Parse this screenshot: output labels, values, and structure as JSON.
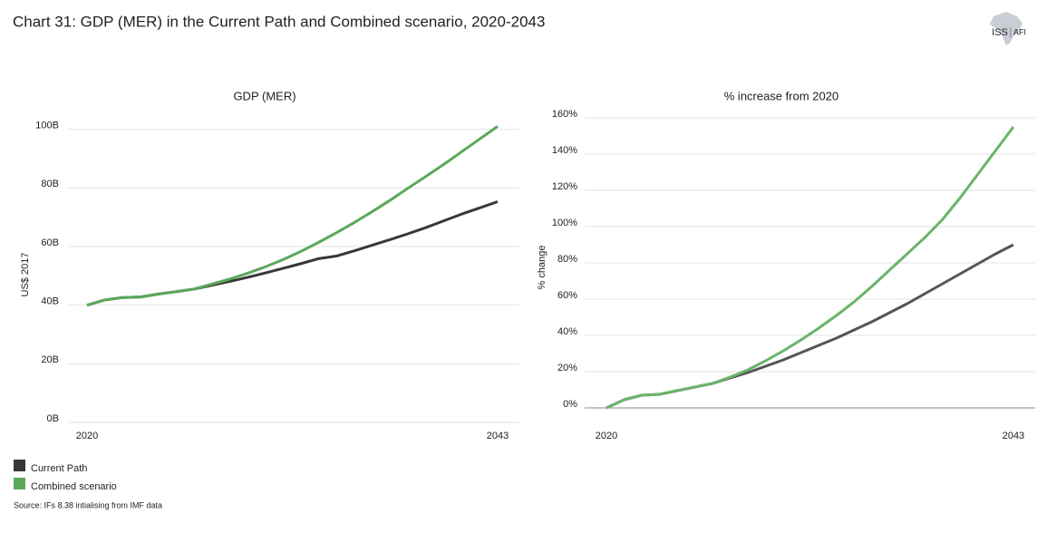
{
  "title": "Chart 31: GDP (MER) in the Current Path and Combined scenario, 2020-2043",
  "source": "Source: IFs 8.38 intialising from IMF data",
  "logo": {
    "left": "ISS",
    "right": "AFI"
  },
  "chart_data": [
    {
      "type": "line",
      "title": "GDP (MER)",
      "y_label": "US$ 2017",
      "x": [
        2020,
        2021,
        2022,
        2023,
        2024,
        2025,
        2026,
        2027,
        2028,
        2029,
        2030,
        2031,
        2032,
        2033,
        2034,
        2035,
        2036,
        2037,
        2038,
        2039,
        2040,
        2041,
        2042,
        2043
      ],
      "xlim": [
        2020,
        2043
      ],
      "xticks": [
        2020,
        2043
      ],
      "ylim": [
        0,
        107
      ],
      "yticks": [
        {
          "value": 0,
          "label": "0B"
        },
        {
          "value": 20,
          "label": "20B"
        },
        {
          "value": 40,
          "label": "40B"
        },
        {
          "value": 60,
          "label": "60B"
        },
        {
          "value": 80,
          "label": "80B"
        },
        {
          "value": 100,
          "label": "100B"
        }
      ],
      "grid": true,
      "series": [
        {
          "name": "Current Path",
          "color": "#383838",
          "values": [
            40,
            41.8,
            42.6,
            42.8,
            43.8,
            44.6,
            45.5,
            46.8,
            48.1,
            49.5,
            51.0,
            52.6,
            54.2,
            55.9,
            56.8,
            58.6,
            60.5,
            62.4,
            64.4,
            66.5,
            68.8,
            71.1,
            73.2,
            75.3
          ]
        },
        {
          "name": "Combined scenario",
          "color": "#5aa85a",
          "values": [
            40,
            41.8,
            42.6,
            42.8,
            43.8,
            44.6,
            45.5,
            47.2,
            48.9,
            50.9,
            53.1,
            55.6,
            58.4,
            61.5,
            64.8,
            68.3,
            72.0,
            75.9,
            80.0,
            84.0,
            88.1,
            92.4,
            96.7,
            101
          ]
        }
      ]
    },
    {
      "type": "line",
      "title": "% increase from 2020",
      "y_label": "% change",
      "x": [
        2020,
        2021,
        2022,
        2023,
        2024,
        2025,
        2026,
        2027,
        2028,
        2029,
        2030,
        2031,
        2032,
        2033,
        2034,
        2035,
        2036,
        2037,
        2038,
        2039,
        2040,
        2041,
        2042,
        2043
      ],
      "xlim": [
        2020,
        2043
      ],
      "xticks": [
        2020,
        2043
      ],
      "ylim": [
        0,
        165
      ],
      "yticks": [
        {
          "value": 0,
          "label": "0%"
        },
        {
          "value": 20,
          "label": "20%"
        },
        {
          "value": 40,
          "label": "40%"
        },
        {
          "value": 60,
          "label": "60%"
        },
        {
          "value": 80,
          "label": "80%"
        },
        {
          "value": 100,
          "label": "100%"
        },
        {
          "value": 120,
          "label": "120%"
        },
        {
          "value": 140,
          "label": "140%"
        },
        {
          "value": 160,
          "label": "160%"
        }
      ],
      "grid": true,
      "series": [
        {
          "name": "Current Path",
          "color": "#555555",
          "values": [
            0,
            4.5,
            7,
            7.5,
            9.5,
            11.5,
            13.5,
            16.5,
            19.5,
            23,
            26.5,
            30.5,
            34.5,
            38.5,
            43,
            47.5,
            52.5,
            57.5,
            63,
            68.5,
            74,
            79.5,
            85,
            90
          ]
        },
        {
          "name": "Combined scenario",
          "color": "#6ab46a",
          "values": [
            0,
            4.5,
            7,
            7.5,
            9.5,
            11.5,
            13.5,
            17,
            21,
            26,
            31.5,
            37.5,
            44,
            51,
            58.5,
            67,
            76,
            85,
            94,
            104,
            116,
            129,
            142,
            155
          ]
        }
      ]
    }
  ]
}
